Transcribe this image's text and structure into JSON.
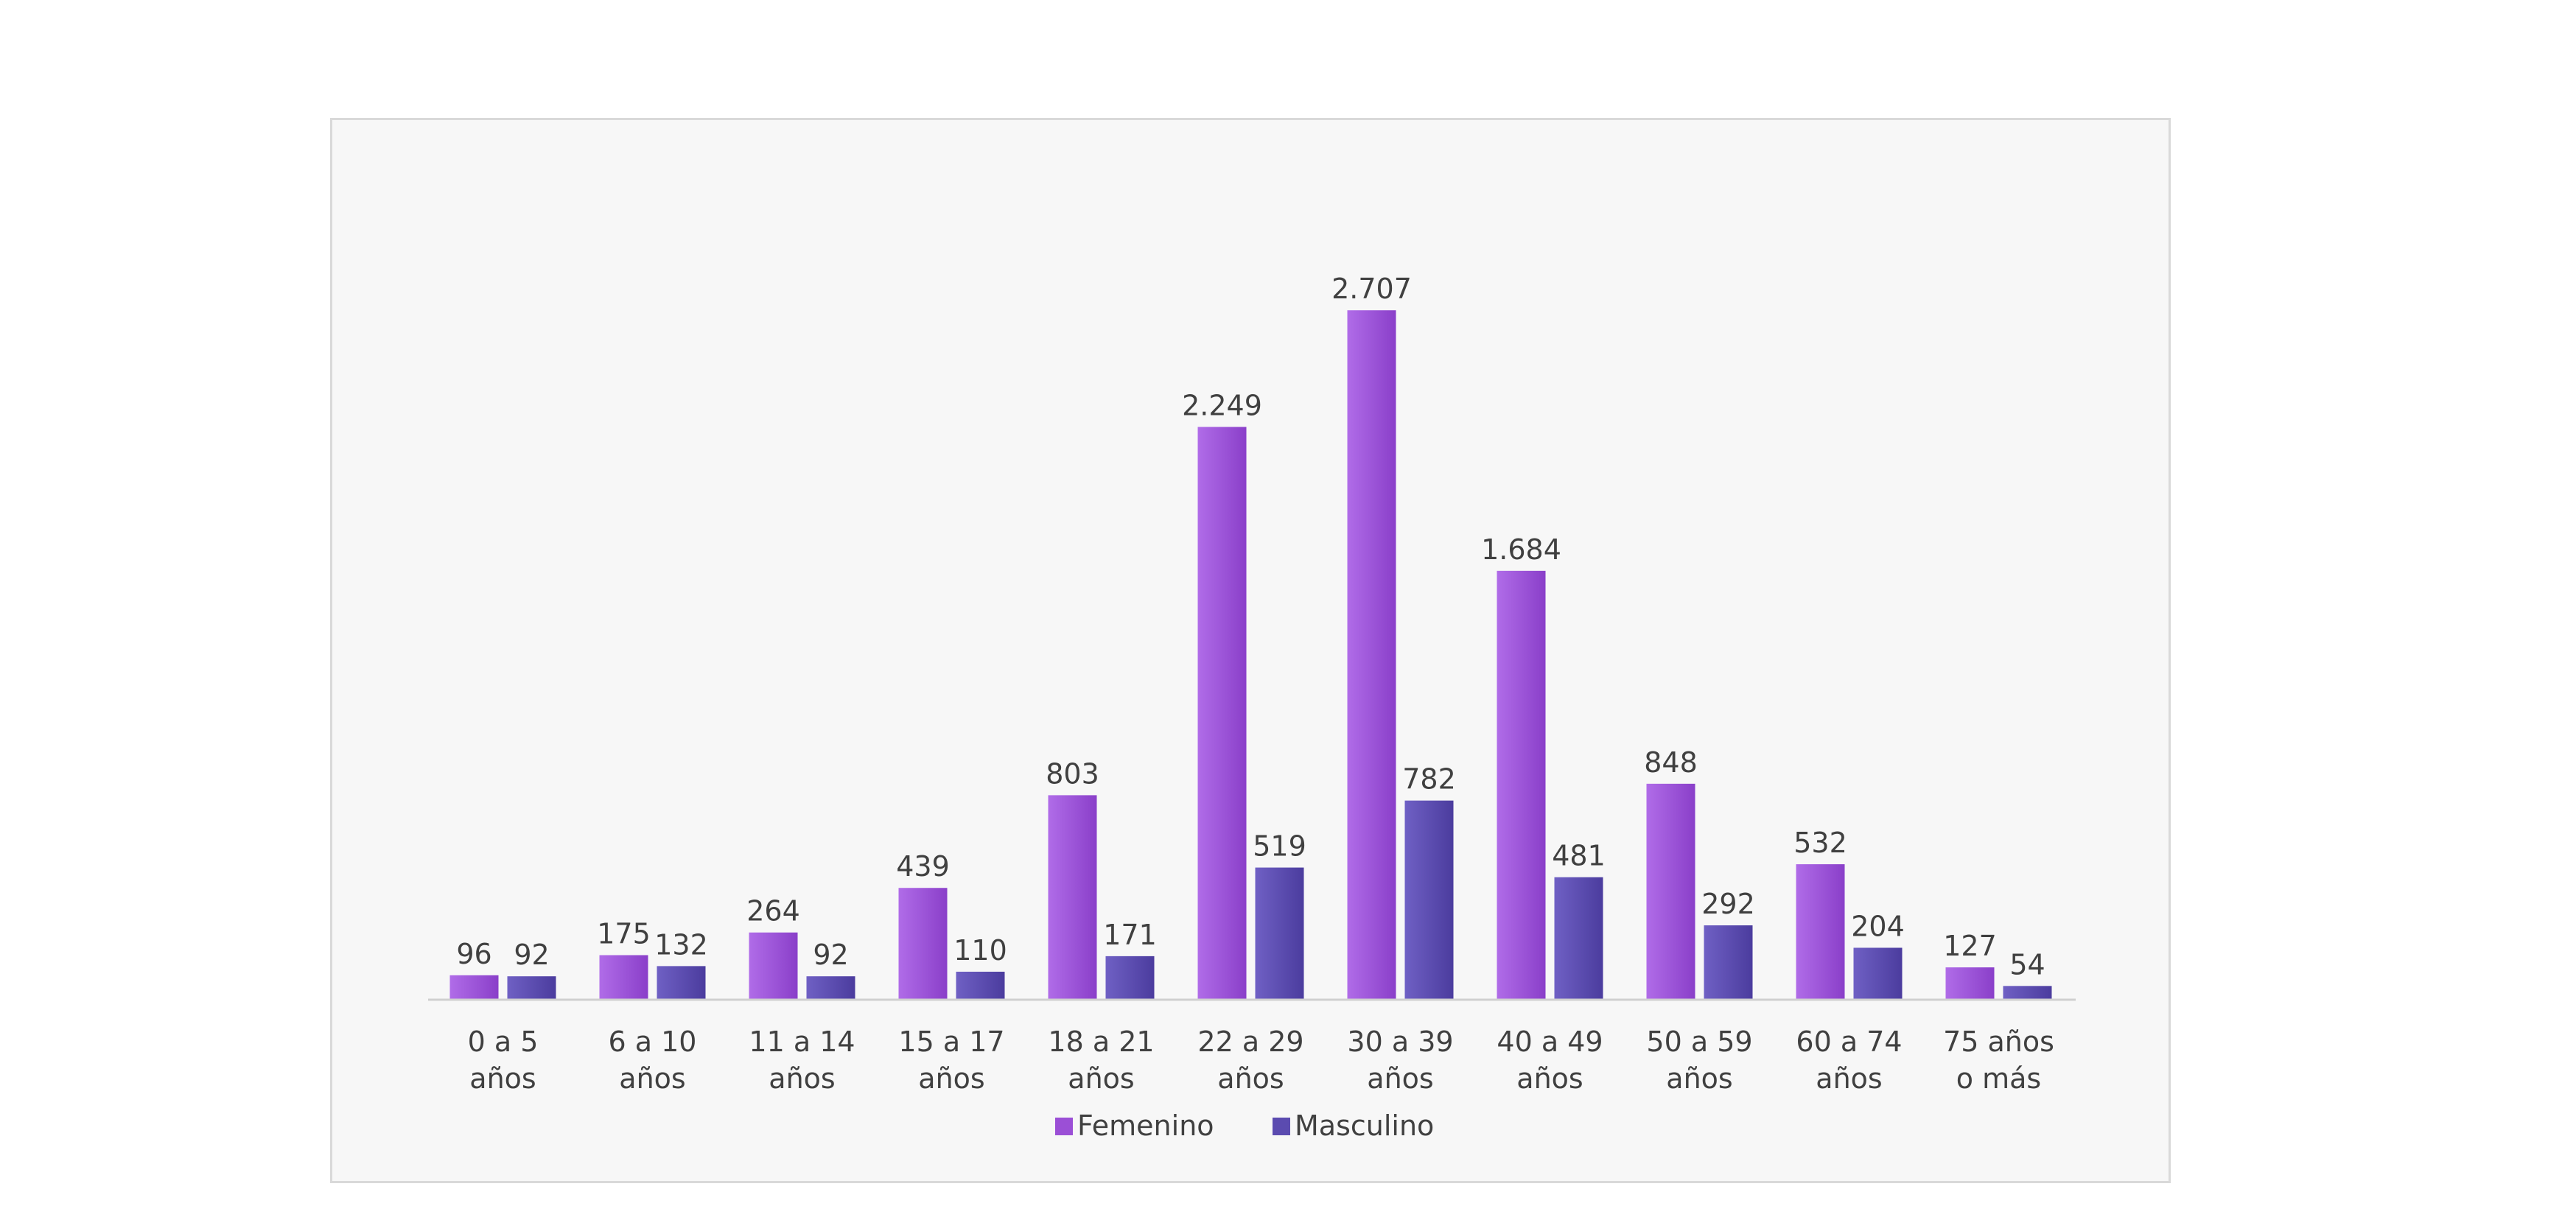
{
  "chart_data": {
    "type": "bar",
    "title": "",
    "xlabel": "",
    "ylabel": "",
    "ylim": [
      0,
      3000
    ],
    "grid": false,
    "legend_position": "bottom",
    "categories": [
      [
        "0 a 5",
        "años"
      ],
      [
        "6 a 10",
        "años"
      ],
      [
        "11 a 14",
        "años"
      ],
      [
        "15 a 17",
        "años"
      ],
      [
        "18 a 21",
        "años"
      ],
      [
        "22 a 29",
        "años"
      ],
      [
        "30 a 39",
        "años"
      ],
      [
        "40 a 49",
        "años"
      ],
      [
        "50 a 59",
        "años"
      ],
      [
        "60 a 74",
        "años"
      ],
      [
        "75 años",
        "o más"
      ]
    ],
    "series": [
      {
        "name": "Femenino",
        "color": "#9b4fd6",
        "values": [
          96,
          175,
          264,
          439,
          803,
          2249,
          2707,
          1684,
          848,
          532,
          127
        ],
        "labels": [
          "96",
          "175",
          "264",
          "439",
          "803",
          "2.249",
          "2.707",
          "1.684",
          "848",
          "532",
          "127"
        ]
      },
      {
        "name": "Masculino",
        "color": "#5b4bb0",
        "values": [
          92,
          132,
          92,
          110,
          171,
          519,
          782,
          481,
          292,
          204,
          54
        ],
        "labels": [
          "92",
          "132",
          "92",
          "110",
          "171",
          "519",
          "782",
          "481",
          "292",
          "204",
          "54"
        ]
      }
    ]
  }
}
